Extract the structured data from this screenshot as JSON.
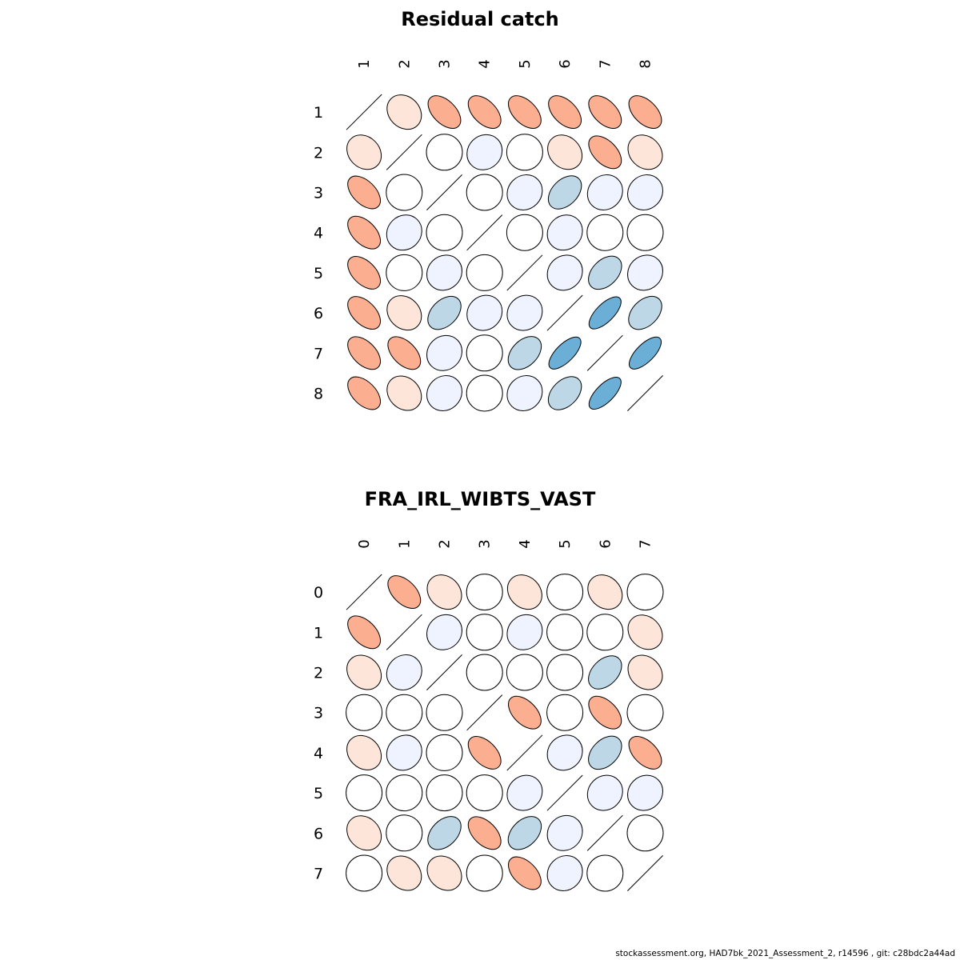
{
  "chart_data": [
    {
      "type": "correlation-ellipse-matrix",
      "title": "Residual catch",
      "labels": [
        "1",
        "2",
        "3",
        "4",
        "5",
        "6",
        "7",
        "8"
      ],
      "matrix": [
        [
          1.0,
          0.2,
          0.5,
          0.5,
          0.5,
          0.5,
          0.5,
          0.5
        ],
        [
          0.2,
          1.0,
          0.0,
          -0.1,
          0.0,
          0.2,
          0.5,
          0.2
        ],
        [
          0.5,
          0.0,
          1.0,
          0.0,
          -0.1,
          -0.4,
          -0.1,
          -0.1
        ],
        [
          0.5,
          -0.1,
          0.0,
          1.0,
          0.0,
          -0.1,
          0.0,
          0.0
        ],
        [
          0.5,
          0.0,
          -0.1,
          0.0,
          1.0,
          -0.1,
          -0.4,
          -0.1
        ],
        [
          0.5,
          0.2,
          -0.4,
          -0.1,
          -0.1,
          1.0,
          -0.7,
          -0.4
        ],
        [
          0.5,
          0.5,
          -0.1,
          0.0,
          -0.4,
          -0.7,
          1.0,
          -0.7
        ],
        [
          0.5,
          0.2,
          -0.1,
          0.0,
          -0.1,
          -0.4,
          -0.7,
          1.0
        ]
      ]
    },
    {
      "type": "correlation-ellipse-matrix",
      "title": "FRA_IRL_WIBTS_VAST",
      "labels": [
        "0",
        "1",
        "2",
        "3",
        "4",
        "5",
        "6",
        "7"
      ],
      "matrix": [
        [
          1.0,
          0.5,
          0.2,
          0.0,
          0.2,
          0.0,
          0.2,
          0.0
        ],
        [
          0.5,
          1.0,
          -0.1,
          0.0,
          -0.1,
          0.0,
          0.0,
          0.2
        ],
        [
          0.2,
          -0.1,
          1.0,
          0.0,
          0.0,
          0.0,
          -0.4,
          0.2
        ],
        [
          0.0,
          0.0,
          0.0,
          1.0,
          0.5,
          0.0,
          0.5,
          0.0
        ],
        [
          0.2,
          -0.1,
          0.0,
          0.5,
          1.0,
          -0.1,
          -0.4,
          0.5
        ],
        [
          0.0,
          0.0,
          0.0,
          0.0,
          -0.1,
          1.0,
          -0.1,
          -0.1
        ],
        [
          0.2,
          0.0,
          -0.4,
          0.5,
          -0.4,
          -0.1,
          1.0,
          0.0
        ],
        [
          0.0,
          0.2,
          0.2,
          0.0,
          0.5,
          -0.1,
          0.0,
          1.0
        ]
      ]
    }
  ],
  "colors": {
    "positive_strong": "#fcae91",
    "positive_weak": "#fee5d9",
    "neutral": "#ffffff",
    "negative_weak": "#eff3ff",
    "negative_mid": "#bdd7e7",
    "negative_strong": "#6baed6",
    "outline": "#000000"
  },
  "footer": "stockassessment.org, HAD7bk_2021_Assessment_2, r14596 , git: c28bdc2a44ad"
}
